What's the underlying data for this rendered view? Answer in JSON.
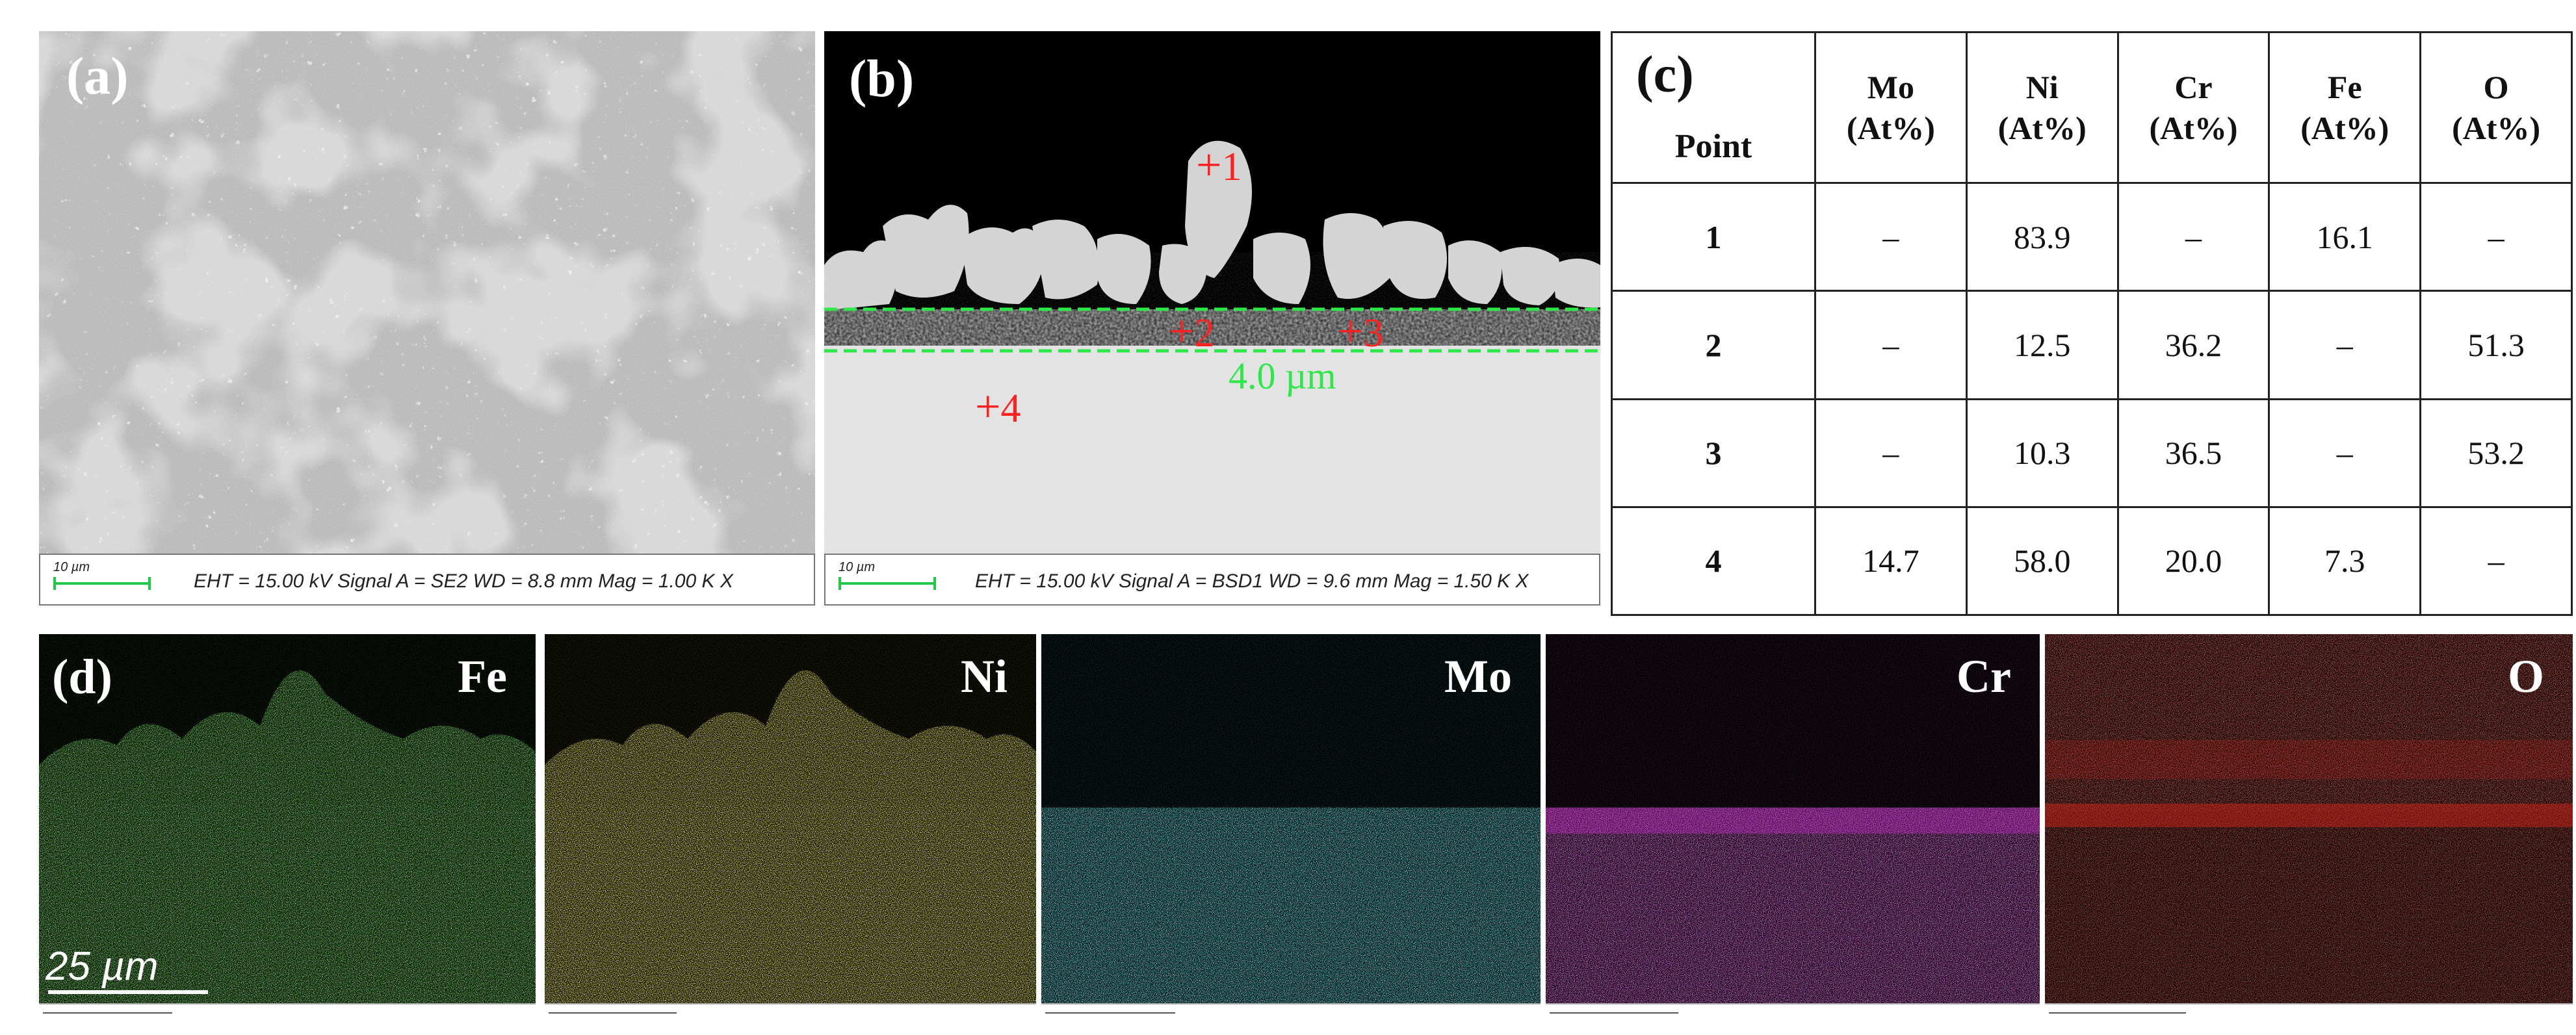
{
  "panel_a": {
    "label": "(a)",
    "scale_label": "10 µm",
    "params": "EHT = 15.00 kV  Signal A = SE2  WD = 8.8 mm Mag = 1.00 K X"
  },
  "panel_b": {
    "label": "(b)",
    "scale_label": "10 µm",
    "params": "EHT = 15.00 kV  Signal A = BSD1  WD = 9.6 mm Mag = 1.50 K X",
    "thickness": "4.0 µm",
    "points": [
      "1",
      "2",
      "3",
      "4"
    ]
  },
  "panel_c": {
    "label": "(c)",
    "table": {
      "header_point": "Point",
      "columns": [
        {
          "el": "Mo",
          "unit": "(At%)"
        },
        {
          "el": "Ni",
          "unit": "(At%)"
        },
        {
          "el": "Cr",
          "unit": "(At%)"
        },
        {
          "el": "Fe",
          "unit": "(At%)"
        },
        {
          "el": "O",
          "unit": "(At%)"
        }
      ],
      "rows": [
        {
          "point": "1",
          "values": [
            "–",
            "83.9",
            "–",
            "16.1",
            "–"
          ]
        },
        {
          "point": "2",
          "values": [
            "–",
            "12.5",
            "36.2",
            "–",
            "51.3"
          ]
        },
        {
          "point": "3",
          "values": [
            "–",
            "10.3",
            "36.5",
            "–",
            "53.2"
          ]
        },
        {
          "point": "4",
          "values": [
            "14.7",
            "58.0",
            "20.0",
            "7.3",
            "–"
          ]
        }
      ]
    }
  },
  "panel_d": {
    "label": "(d)",
    "scale_label": "25 µm",
    "maps": [
      {
        "element": "Fe",
        "color": "#2fbf1f"
      },
      {
        "element": "Ni",
        "color": "#d8d21a"
      },
      {
        "element": "Mo",
        "color": "#1fc4c8"
      },
      {
        "element": "Cr",
        "color": "#d42ad8"
      },
      {
        "element": "O",
        "color": "#e0241c"
      }
    ]
  }
}
